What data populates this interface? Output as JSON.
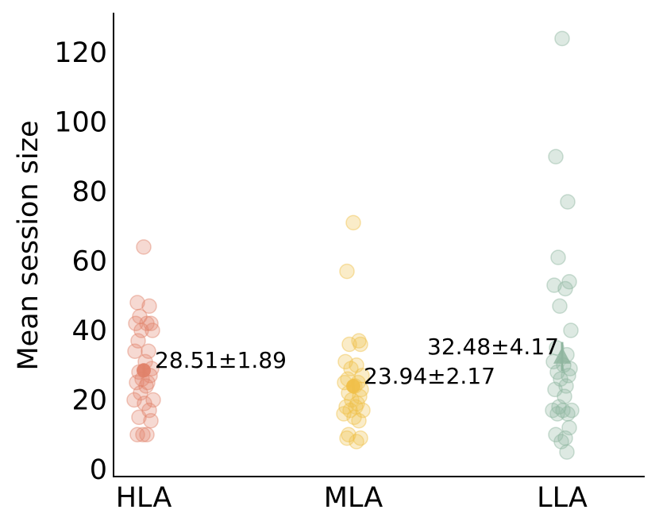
{
  "chart_data": {
    "type": "scatter",
    "title": "",
    "xlabel": "",
    "ylabel": "Mean session size",
    "ylim": [
      0,
      130
    ],
    "yticks": [
      0,
      20,
      40,
      60,
      80,
      100,
      120
    ],
    "grid": false,
    "categories": [
      "HLA",
      "MLA",
      "LLA"
    ],
    "series": [
      {
        "category": "HLA",
        "color": "#e0826a",
        "marker": "circle",
        "points": [
          64,
          48,
          47,
          44,
          42,
          42,
          42,
          40,
          40,
          37,
          34,
          34,
          31,
          29,
          28,
          27,
          26,
          25,
          25,
          24,
          22,
          20,
          20,
          19,
          17,
          15,
          14,
          10,
          10,
          10
        ],
        "mean": 28.51,
        "sem": 1.89,
        "label": "28.51±1.89"
      },
      {
        "category": "MLA",
        "color": "#f0c04a",
        "marker": "circle",
        "points": [
          71,
          57,
          37,
          36,
          36,
          31,
          30,
          29,
          27,
          26,
          25,
          25,
          24,
          23,
          22,
          21,
          20,
          19,
          18,
          18,
          17,
          17,
          16,
          15,
          14,
          10,
          9,
          9,
          8
        ],
        "mean": 23.94,
        "sem": 2.17,
        "label": "23.94±2.17"
      },
      {
        "category": "LLA",
        "color": "#8fb59f",
        "marker": "triangle",
        "points": [
          124,
          90,
          77,
          61,
          54,
          53,
          52,
          47,
          40,
          35,
          33,
          31,
          30,
          29,
          28,
          27,
          26,
          24,
          23,
          21,
          18,
          17,
          17,
          17,
          16,
          16,
          12,
          10,
          9,
          8,
          5
        ],
        "mean": 32.48,
        "sem": 4.17,
        "label": "32.48±4.17"
      }
    ]
  }
}
